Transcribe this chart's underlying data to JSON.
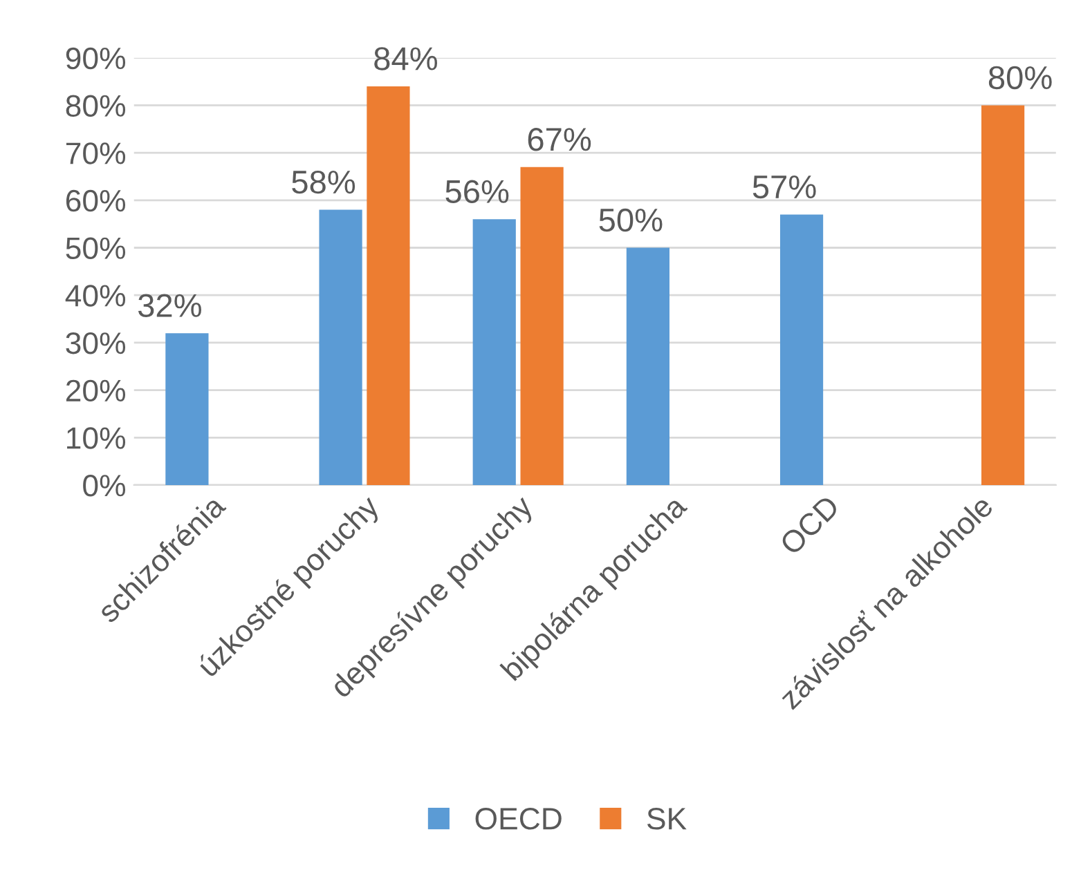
{
  "chart_data": {
    "type": "bar",
    "categories": [
      "schizofrénia",
      "úzkostné poruchy",
      "depresívne poruchy",
      "bipolárna porucha",
      "OCD",
      "závislosť na alkohole"
    ],
    "series": [
      {
        "name": "OECD",
        "color": "#5b9bd5",
        "values": [
          32,
          58,
          56,
          50,
          57,
          null
        ],
        "value_labels": [
          "32%",
          "58%",
          "56%",
          "50%",
          "57%",
          null
        ]
      },
      {
        "name": "SK",
        "color": "#ed7d31",
        "values": [
          null,
          84,
          67,
          null,
          null,
          80
        ],
        "value_labels": [
          null,
          "84%",
          "67%",
          null,
          null,
          "80%"
        ]
      }
    ],
    "ylim": [
      0,
      90
    ],
    "yticks": [
      {
        "value": 0,
        "label": "0%"
      },
      {
        "value": 10,
        "label": "10%"
      },
      {
        "value": 20,
        "label": "20%"
      },
      {
        "value": 30,
        "label": "30%"
      },
      {
        "value": 40,
        "label": "40%"
      },
      {
        "value": 50,
        "label": "50%"
      },
      {
        "value": 60,
        "label": "60%"
      },
      {
        "value": 70,
        "label": "70%"
      },
      {
        "value": 80,
        "label": "80%"
      },
      {
        "value": 90,
        "label": "90%"
      }
    ],
    "grid": "y",
    "legend": "bottom"
  }
}
